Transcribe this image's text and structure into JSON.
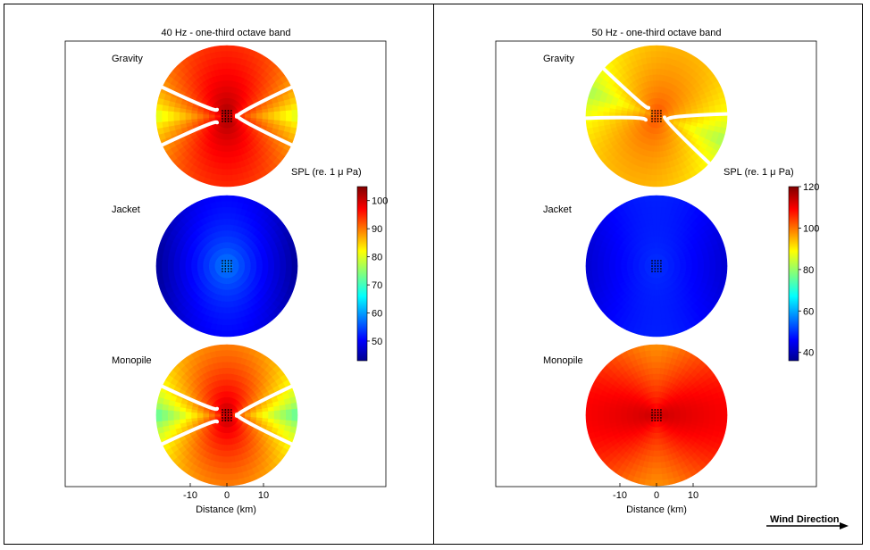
{
  "panels": [
    {
      "title": "40 Hz - one-third octave band",
      "xlabel": "Distance (km)",
      "x_ticks": [
        -10,
        0,
        10
      ],
      "colorbar": {
        "label": "SPL (re. 1 μ Pa)",
        "ticks": [
          50,
          60,
          70,
          80,
          90,
          100
        ],
        "range": [
          43,
          105
        ],
        "colormap": "jet"
      },
      "foundations": [
        {
          "name": "Gravity",
          "center_spl": 105,
          "broadside_spl": 95,
          "endfire_spl": 78,
          "pattern": "dipole-notch"
        },
        {
          "name": "Jacket",
          "center_spl": 62,
          "broadside_spl": 48,
          "endfire_spl": 48,
          "pattern": "uniform-low"
        },
        {
          "name": "Monopile",
          "center_spl": 105,
          "broadside_spl": 90,
          "endfire_spl": 70,
          "pattern": "dipole-notch"
        }
      ]
    },
    {
      "title": "50 Hz - one-third octave band",
      "xlabel": "Distance (km)",
      "x_ticks": [
        -10,
        0,
        10
      ],
      "colorbar": {
        "label": "SPL (re. 1 μ Pa)",
        "ticks": [
          40,
          60,
          80,
          100,
          120
        ],
        "range": [
          36,
          120
        ],
        "colormap": "jet"
      },
      "foundations": [
        {
          "name": "Gravity",
          "center_spl": 105,
          "broadside_spl": 95,
          "endfire_spl": 80,
          "pattern": "rotated-notch"
        },
        {
          "name": "Jacket",
          "center_spl": 52,
          "broadside_spl": 46,
          "endfire_spl": 44,
          "pattern": "uniform-low"
        },
        {
          "name": "Monopile",
          "center_spl": 115,
          "broadside_spl": 98,
          "endfire_spl": 110,
          "pattern": "strong"
        }
      ]
    }
  ],
  "footer": {
    "wind_label": "Wind Direction"
  },
  "chart_data": [
    {
      "type": "heatmap",
      "title": "40 Hz - one-third octave band",
      "xlabel": "Distance (km)",
      "series": [
        {
          "name": "Gravity"
        },
        {
          "name": "Jacket"
        },
        {
          "name": "Monopile"
        }
      ],
      "colorbar_label": "SPL (re. 1 μ Pa)",
      "colorbar_ticks": [
        50,
        60,
        70,
        80,
        90,
        100
      ],
      "x_ticks": [
        -10,
        0,
        10
      ]
    },
    {
      "type": "heatmap",
      "title": "50 Hz - one-third octave band",
      "xlabel": "Distance (km)",
      "series": [
        {
          "name": "Gravity"
        },
        {
          "name": "Jacket"
        },
        {
          "name": "Monopile"
        }
      ],
      "colorbar_label": "SPL (re. 1 μ Pa)",
      "colorbar_ticks": [
        40,
        60,
        80,
        100,
        120
      ],
      "x_ticks": [
        -10,
        0,
        10
      ]
    }
  ]
}
